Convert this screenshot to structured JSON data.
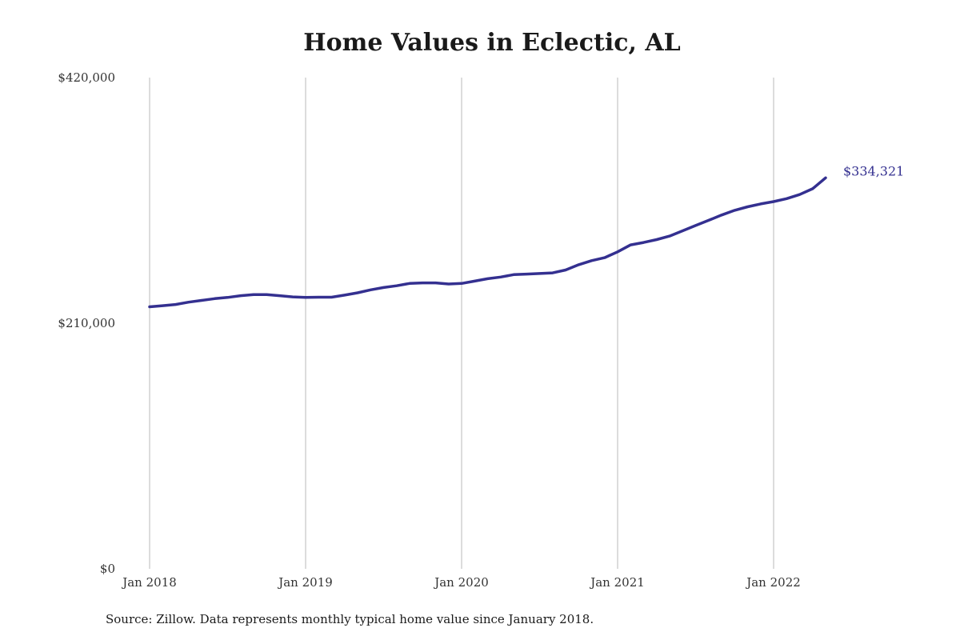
{
  "chart_data": {
    "type": "line",
    "title": "Home Values in Eclectic, AL",
    "xlabel": "",
    "ylabel": "",
    "x_tick_labels": [
      "Jan 2018",
      "Jan 2019",
      "Jan 2020",
      "Jan 2021",
      "Jan 2022"
    ],
    "y_tick_labels": [
      "$0",
      "$210,000",
      "$420,000"
    ],
    "y_ticks": [
      0,
      210000,
      420000
    ],
    "ylim": [
      0,
      420000
    ],
    "xlim": [
      "2018-01",
      "2022-06"
    ],
    "grid": "vertical",
    "line_color": "#343090",
    "end_label": "$334,321",
    "series": [
      {
        "x": [
          "2018-01",
          "2018-02",
          "2018-03",
          "2018-04",
          "2018-05",
          "2018-06",
          "2018-07",
          "2018-08",
          "2018-09",
          "2018-10",
          "2018-11",
          "2018-12",
          "2019-01",
          "2019-02",
          "2019-03",
          "2019-04",
          "2019-05",
          "2019-06",
          "2019-07",
          "2019-08",
          "2019-09",
          "2019-10",
          "2019-11",
          "2019-12",
          "2020-01",
          "2020-02",
          "2020-03",
          "2020-04",
          "2020-05",
          "2020-06",
          "2020-07",
          "2020-08",
          "2020-09",
          "2020-10",
          "2020-11",
          "2020-12",
          "2021-01",
          "2021-02",
          "2021-03",
          "2021-04",
          "2021-05",
          "2021-06",
          "2021-07",
          "2021-08",
          "2021-09",
          "2021-10",
          "2021-11",
          "2021-12",
          "2022-01",
          "2022-02",
          "2022-03",
          "2022-04",
          "2022-05"
        ],
        "values": [
          224000,
          225000,
          226000,
          228000,
          229500,
          231000,
          232000,
          233500,
          234500,
          234500,
          233500,
          232500,
          232000,
          232200,
          232200,
          234000,
          236000,
          238500,
          240500,
          242000,
          244000,
          244500,
          244500,
          243500,
          244000,
          246000,
          248000,
          249500,
          251500,
          252000,
          252500,
          253000,
          255500,
          260000,
          263500,
          266000,
          271000,
          277000,
          279000,
          281500,
          284500,
          289000,
          293500,
          298000,
          302500,
          306500,
          309500,
          312000,
          314000,
          316500,
          320000,
          325000,
          334321
        ]
      }
    ]
  },
  "source_note": "Source: Zillow. Data represents monthly typical home value since January 2018."
}
